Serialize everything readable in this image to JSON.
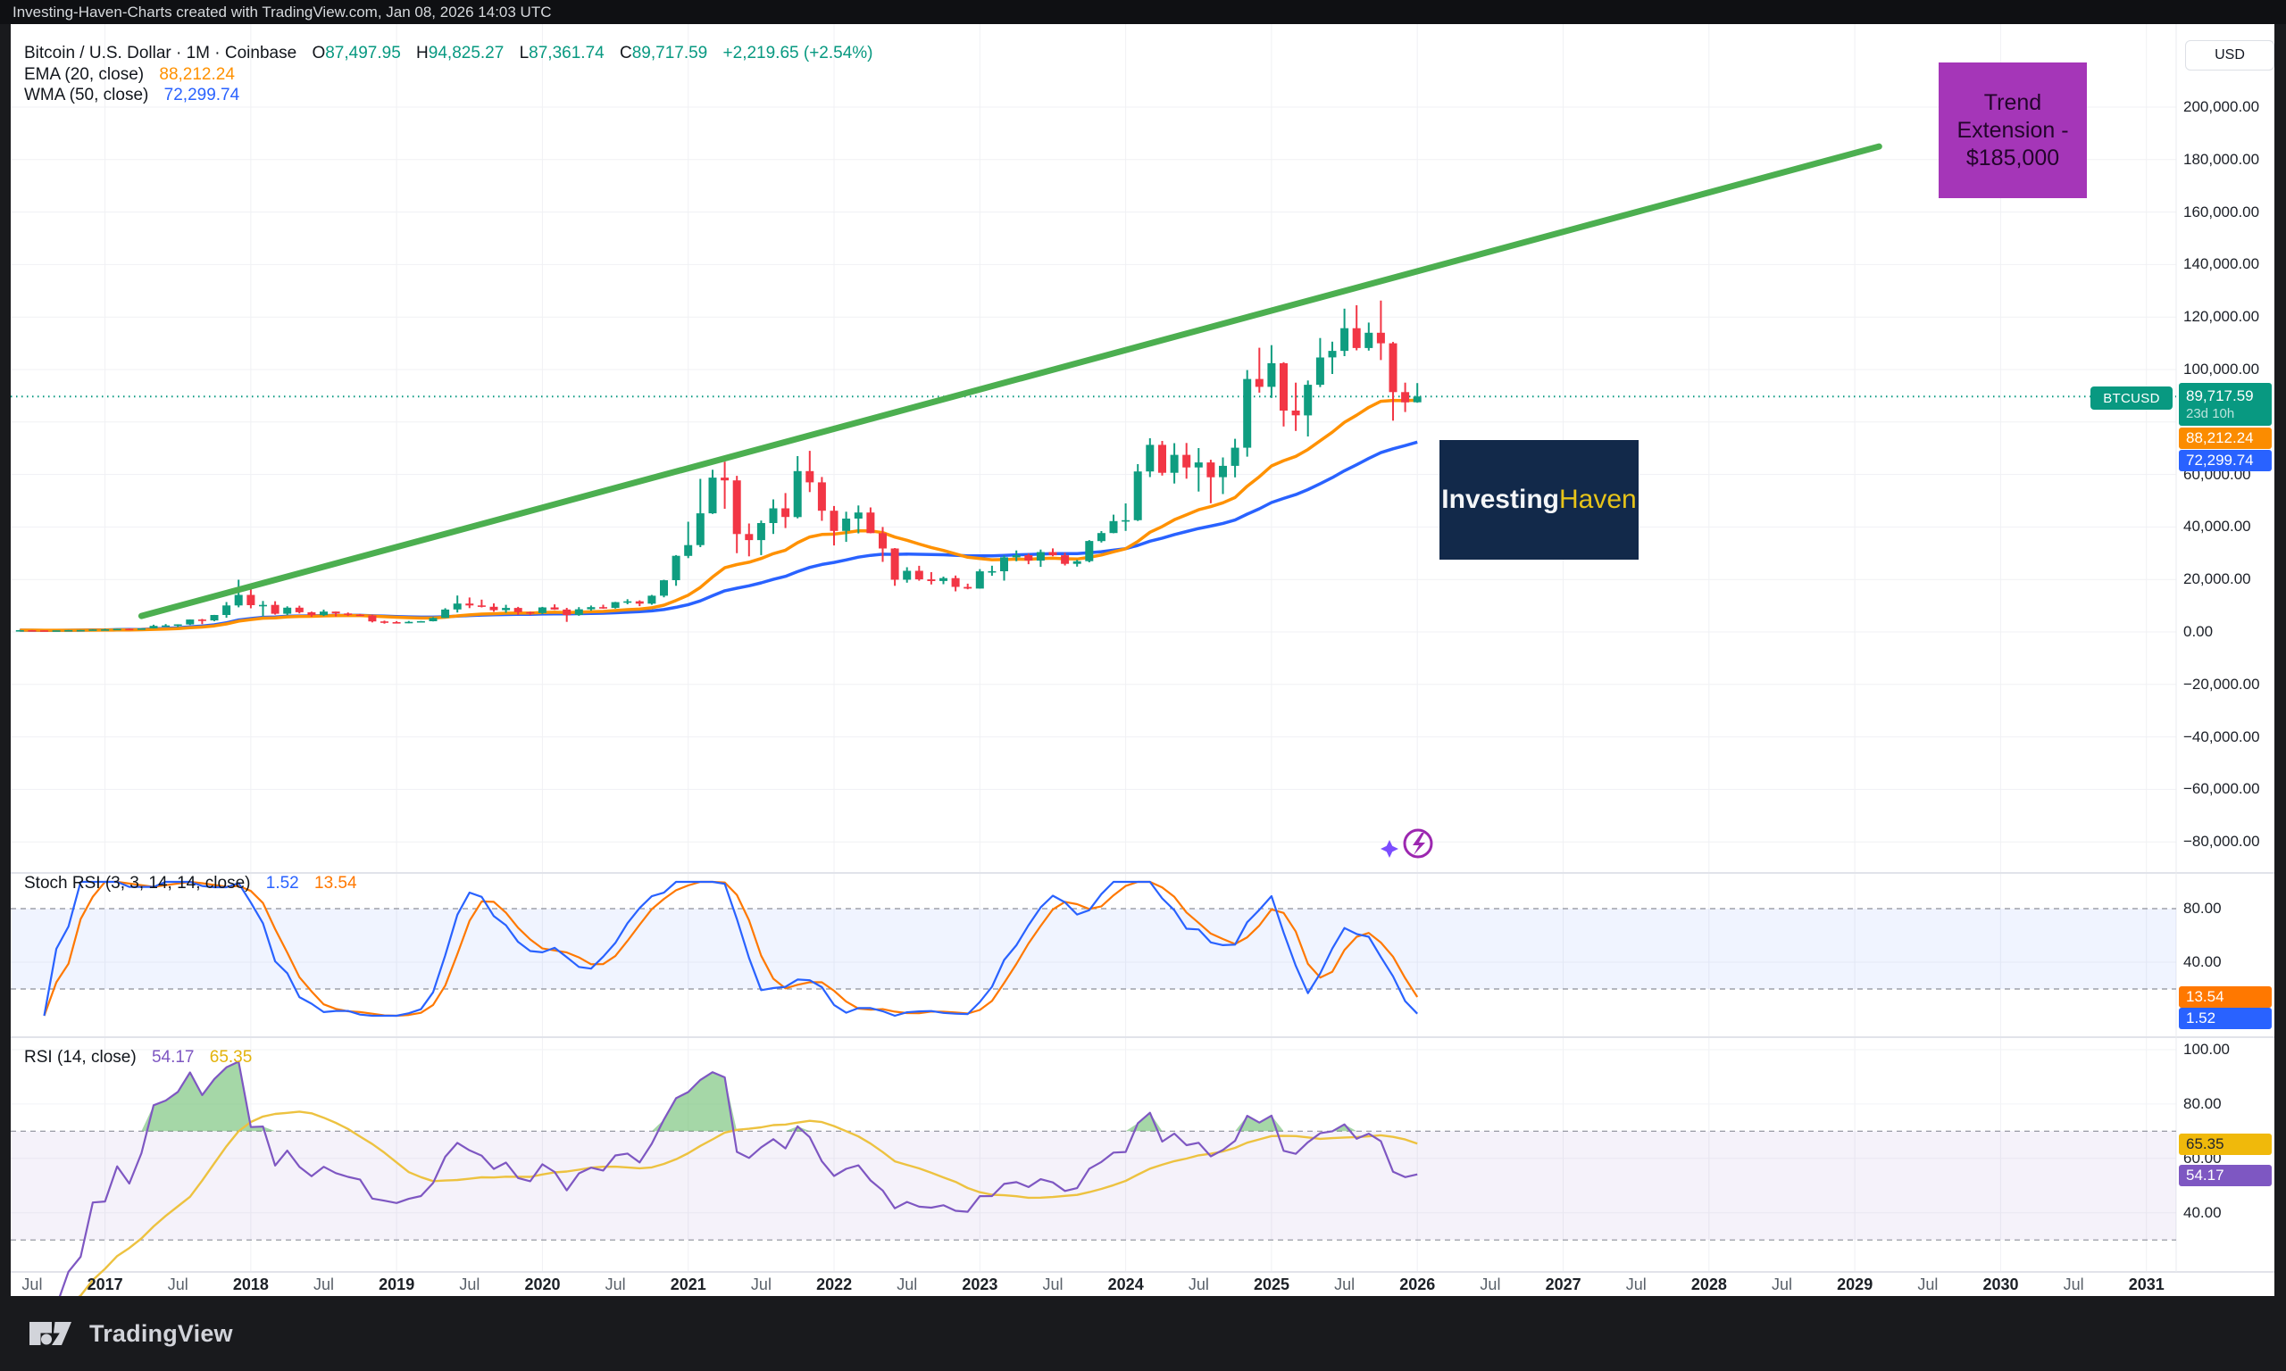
{
  "top_bar": {
    "text": "Investing-Haven-Charts created with TradingView.com, Jan 08, 2026 14:03 UTC"
  },
  "legend": {
    "symbol": "Bitcoin / U.S. Dollar · 1M · Coinbase",
    "o_label": "O",
    "o": "87,497.95",
    "h_label": "H",
    "h": "94,825.27",
    "l_label": "L",
    "l": "87,361.74",
    "c_label": "C",
    "c": "89,717.59",
    "change": "+2,219.65 (+2.54%)",
    "ema_label": "EMA (20, close)",
    "ema_value": "88,212.24",
    "wma_label": "WMA (50, close)",
    "wma_value": "72,299.74"
  },
  "panes": {
    "stoch": {
      "label": "Stoch RSI (3, 3, 14, 14, close)",
      "k_value": "1.52",
      "d_value": "13.54"
    },
    "rsi": {
      "label": "RSI (14, close)",
      "value": "54.17",
      "ma_value": "65.35"
    }
  },
  "price_axis": {
    "currency": "USD",
    "symbol_tag": "BTCUSD",
    "close_badge": {
      "price": "89,717.59",
      "countdown": "23d 10h"
    },
    "ema_badge": "88,212.24",
    "wma_badge": "72,299.74",
    "stoch_d_badge": "13.54",
    "stoch_k_badge": "1.52",
    "rsi_ma_badge": "65.35",
    "rsi_badge": "54.17",
    "main_ticks": [
      200000,
      180000,
      160000,
      140000,
      120000,
      100000,
      60000,
      40000,
      20000,
      0,
      -20000,
      -40000,
      -60000,
      -80000
    ],
    "stoch_ticks": [
      80,
      40
    ],
    "rsi_ticks": [
      100,
      80,
      60,
      40
    ]
  },
  "time_axis": {
    "labels": [
      "Jul",
      "2017",
      "Jul",
      "2018",
      "Jul",
      "2019",
      "Jul",
      "2020",
      "Jul",
      "2021",
      "Jul",
      "2022",
      "Jul",
      "2023",
      "Jul",
      "2024",
      "Jul",
      "2025",
      "Jul",
      "2026",
      "Jul",
      "2027",
      "Jul",
      "2028",
      "Jul",
      "2029",
      "Jul",
      "2030",
      "Jul",
      "2031"
    ]
  },
  "annotations": {
    "trend_extension": {
      "line1": "Trend",
      "line2": "Extension -",
      "line3": "$185,000"
    },
    "watermark": {
      "part1": "Investing",
      "part2": "Haven"
    }
  },
  "footer": {
    "brand": "TradingView"
  },
  "colors": {
    "up": "#0f9d80",
    "down": "#f23645",
    "ema": "#ff9100",
    "wma": "#2962ff",
    "trendline": "#4caf50",
    "close_line": "#089981",
    "stoch_k": "#2962ff",
    "stoch_d": "#ff7800",
    "rsi": "#7e57c2",
    "rsi_ma": "#edc240",
    "rsi_fill_green": "rgba(76,175,80,0.5)",
    "stoch_band": "rgba(41,98,255,0.07)",
    "rsi_band": "rgba(126,87,194,0.08)",
    "badge_close": "#089981",
    "badge_ema": "#fb8c00",
    "badge_wma": "#2962ff",
    "badge_stoch_d": "#ff7800",
    "badge_stoch_k": "#2962ff",
    "badge_rsi_ma": "#f0b90b",
    "badge_rsi": "#7e57c2",
    "annotation_purple": "#a536b8",
    "watermark_navy": "#12294a",
    "watermark_yellow": "#e7c419"
  },
  "chart_data": {
    "type": "candlestick",
    "title": "Bitcoin / U.S. Dollar monthly with trend extension to $185,000",
    "symbol": "BTCUSD",
    "exchange": "Coinbase",
    "interval": "1M",
    "ylabel": "USD",
    "ylim": [
      -90000,
      210000
    ],
    "xrange": [
      "2016-06",
      "2031-12"
    ],
    "start": {
      "year": 2016,
      "month": 6
    },
    "ohlc": [
      [
        530,
        780,
        520,
        670
      ],
      [
        670,
        715,
        600,
        625
      ],
      [
        625,
        630,
        465,
        575
      ],
      [
        575,
        615,
        565,
        610
      ],
      [
        610,
        740,
        600,
        700
      ],
      [
        700,
        755,
        665,
        745
      ],
      [
        745,
        980,
        740,
        965
      ],
      [
        965,
        1180,
        750,
        970
      ],
      [
        970,
        1220,
        920,
        1190
      ],
      [
        1190,
        1290,
        890,
        1080
      ],
      [
        1080,
        1350,
        1060,
        1350
      ],
      [
        1350,
        2770,
        1330,
        2300
      ],
      [
        2300,
        2990,
        2120,
        2480
      ],
      [
        2480,
        2920,
        1830,
        2875
      ],
      [
        2875,
        4765,
        2650,
        4735
      ],
      [
        4735,
        4950,
        2970,
        4360
      ],
      [
        4360,
        6480,
        4100,
        6450
      ],
      [
        6450,
        11400,
        5400,
        10100
      ],
      [
        10100,
        19900,
        9400,
        14100
      ],
      [
        14100,
        17200,
        9000,
        10200
      ],
      [
        10200,
        11790,
        6000,
        10300
      ],
      [
        10300,
        11700,
        6600,
        6930
      ],
      [
        6930,
        9760,
        6430,
        9240
      ],
      [
        9240,
        9990,
        7040,
        7500
      ],
      [
        7500,
        7750,
        5780,
        6400
      ],
      [
        6400,
        8500,
        6070,
        7750
      ],
      [
        7750,
        7770,
        5880,
        7030
      ],
      [
        7030,
        7410,
        6100,
        6600
      ],
      [
        6600,
        6830,
        6200,
        6300
      ],
      [
        6300,
        6560,
        3650,
        4020
      ],
      [
        4020,
        4310,
        3150,
        3740
      ],
      [
        3740,
        4110,
        3350,
        3450
      ],
      [
        3450,
        4190,
        3350,
        3850
      ],
      [
        3850,
        4140,
        3660,
        4100
      ],
      [
        4100,
        5600,
        4020,
        5350
      ],
      [
        5350,
        9060,
        5330,
        8550
      ],
      [
        8550,
        13880,
        7430,
        10800
      ],
      [
        10800,
        13130,
        9080,
        10100
      ],
      [
        10100,
        12320,
        9350,
        9600
      ],
      [
        9600,
        10900,
        7700,
        8300
      ],
      [
        8300,
        10350,
        7300,
        9150
      ],
      [
        9150,
        9550,
        6500,
        7550
      ],
      [
        7550,
        7750,
        6430,
        7200
      ],
      [
        7200,
        9570,
        6850,
        9350
      ],
      [
        9350,
        10500,
        8450,
        8550
      ],
      [
        8550,
        9200,
        3850,
        6440
      ],
      [
        6440,
        9460,
        6150,
        8630
      ],
      [
        8630,
        10070,
        8100,
        9450
      ],
      [
        9450,
        10380,
        8830,
        9140
      ],
      [
        9140,
        11450,
        8900,
        11350
      ],
      [
        11350,
        12480,
        10550,
        11650
      ],
      [
        11650,
        12050,
        9820,
        10780
      ],
      [
        10780,
        14100,
        10380,
        13800
      ],
      [
        13800,
        19860,
        13200,
        19700
      ],
      [
        19700,
        29300,
        17600,
        29000
      ],
      [
        29000,
        42000,
        28130,
        33100
      ],
      [
        33100,
        58350,
        32300,
        45200
      ],
      [
        45200,
        61800,
        44950,
        58800
      ],
      [
        58800,
        64900,
        46930,
        57750
      ],
      [
        57750,
        59500,
        30000,
        37300
      ],
      [
        37300,
        41330,
        28800,
        35000
      ],
      [
        35000,
        42450,
        29300,
        41500
      ],
      [
        41500,
        50500,
        37330,
        47100
      ],
      [
        47100,
        52920,
        39600,
        43800
      ],
      [
        43800,
        67000,
        43280,
        61300
      ],
      [
        61300,
        69000,
        53300,
        57000
      ],
      [
        57000,
        59050,
        42330,
        46200
      ],
      [
        46200,
        47990,
        32950,
        38500
      ],
      [
        38500,
        45820,
        34320,
        43200
      ],
      [
        43200,
        48200,
        37550,
        45500
      ],
      [
        45500,
        47450,
        37580,
        37650
      ],
      [
        37650,
        40000,
        26700,
        31800
      ],
      [
        31800,
        31960,
        17600,
        19900
      ],
      [
        19900,
        24670,
        18780,
        23300
      ],
      [
        23300,
        25200,
        19520,
        20050
      ],
      [
        20050,
        22800,
        18100,
        19400
      ],
      [
        19400,
        21080,
        18190,
        20500
      ],
      [
        20500,
        21480,
        15480,
        17150
      ],
      [
        17150,
        18390,
        16260,
        16550
      ],
      [
        16550,
        23960,
        16490,
        23100
      ],
      [
        23100,
        25250,
        21400,
        23150
      ],
      [
        23150,
        29180,
        19550,
        28450
      ],
      [
        28450,
        31050,
        26940,
        29250
      ],
      [
        29250,
        29840,
        25800,
        27200
      ],
      [
        27200,
        31400,
        24800,
        30450
      ],
      [
        30450,
        31840,
        28860,
        29230
      ],
      [
        29230,
        30180,
        25350,
        25950
      ],
      [
        25950,
        27480,
        24900,
        26950
      ],
      [
        26950,
        35000,
        26530,
        34650
      ],
      [
        34650,
        38420,
        34080,
        37700
      ],
      [
        37700,
        44700,
        37620,
        42250
      ],
      [
        42250,
        48970,
        38500,
        42580
      ],
      [
        42580,
        63930,
        42270,
        61150
      ],
      [
        61150,
        73800,
        59005,
        71300
      ],
      [
        71300,
        72800,
        59600,
        60650
      ],
      [
        60650,
        71950,
        56550,
        67500
      ],
      [
        67500,
        72000,
        58400,
        62700
      ],
      [
        62700,
        70080,
        53500,
        64600
      ],
      [
        64600,
        65600,
        49050,
        58970
      ],
      [
        58970,
        66500,
        52550,
        63300
      ],
      [
        63300,
        73620,
        58900,
        70200
      ],
      [
        70200,
        99800,
        66800,
        96400
      ],
      [
        96400,
        108300,
        91200,
        93400
      ],
      [
        93400,
        109300,
        89200,
        102400
      ],
      [
        102400,
        102800,
        78300,
        84350
      ],
      [
        84350,
        95000,
        76600,
        82550
      ],
      [
        82550,
        95800,
        74500,
        94200
      ],
      [
        94200,
        112000,
        93300,
        104600
      ],
      [
        104600,
        110600,
        98300,
        107100
      ],
      [
        107100,
        123200,
        105100,
        115750
      ],
      [
        115750,
        124500,
        107300,
        108200
      ],
      [
        108200,
        117900,
        107200,
        114000
      ],
      [
        114000,
        126300,
        103600,
        110000
      ],
      [
        110000,
        110500,
        80500,
        91400
      ],
      [
        91400,
        95000,
        83800,
        87500
      ],
      [
        87497.95,
        94825.27,
        87361.74,
        89717.59
      ]
    ],
    "last_bar": {
      "open": 87497.95,
      "high": 94825.27,
      "low": 87361.74,
      "close": 89717.59,
      "change": 2219.65,
      "change_pct": 2.54
    },
    "overlays": {
      "ema20_close": 88212.24,
      "wma50_close": 72299.74
    },
    "price_line": 89717.59,
    "trendline": {
      "from": {
        "year": 2017,
        "month": 4,
        "price": 6100
      },
      "to": {
        "year": 2029,
        "month": 3,
        "price": 185000
      },
      "label": "Trend Extension - $185,000"
    },
    "stoch_rsi": {
      "params": [
        3,
        3,
        14,
        14
      ],
      "k": 1.52,
      "d": 13.54,
      "overbought": 80,
      "oversold": 20,
      "range": [
        0,
        100
      ]
    },
    "rsi": {
      "length": 14,
      "value": 54.17,
      "ma": 65.35,
      "overbought": 70,
      "oversold": 30,
      "range": [
        0,
        100
      ]
    },
    "grid": true,
    "legend_position": "top-left"
  }
}
